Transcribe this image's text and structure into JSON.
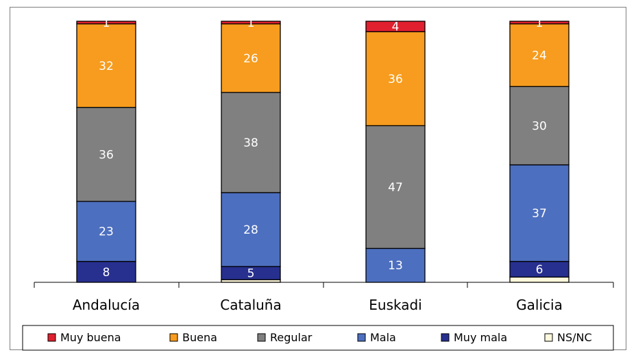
{
  "chart_data": {
    "type": "bar",
    "stacked": true,
    "categories": [
      "Andalucía",
      "Cataluña",
      "Euskadi",
      "Galicia"
    ],
    "series": [
      {
        "name": "NS/NC",
        "color": "#fff8dc",
        "values": [
          0,
          1,
          0,
          2
        ]
      },
      {
        "name": "Muy mala",
        "color": "#27308f",
        "values": [
          8,
          5,
          0,
          6
        ]
      },
      {
        "name": "Mala",
        "color": "#4d6fbf",
        "values": [
          23,
          28,
          13,
          37
        ]
      },
      {
        "name": "Regular",
        "color": "#808080",
        "values": [
          36,
          38,
          47,
          30
        ]
      },
      {
        "name": "Buena",
        "color": "#f79c1e",
        "values": [
          32,
          26,
          36,
          24
        ]
      },
      {
        "name": "Muy buena",
        "color": "#e0202f",
        "values": [
          1,
          1,
          4,
          1
        ]
      }
    ],
    "data_labels": {
      "Muy buena": [
        "1",
        "1",
        "4",
        "1"
      ],
      "Buena": [
        "32",
        "26",
        "36",
        "24"
      ],
      "Regular": [
        "36",
        "38",
        "47",
        "30"
      ],
      "Mala": [
        "23",
        "28",
        "13",
        "37"
      ],
      "Muy mala": [
        "8",
        "5",
        "0",
        "6"
      ],
      "NS/NC": [
        "",
        "",
        "",
        ""
      ]
    },
    "legend_order": [
      "Muy buena",
      "Buena",
      "Regular",
      "Mala",
      "Muy mala",
      "NS/NC"
    ],
    "legend_position": "bottom",
    "ylim": [
      0,
      100
    ],
    "grid": false,
    "title": "",
    "xlabel": "",
    "ylabel": ""
  }
}
